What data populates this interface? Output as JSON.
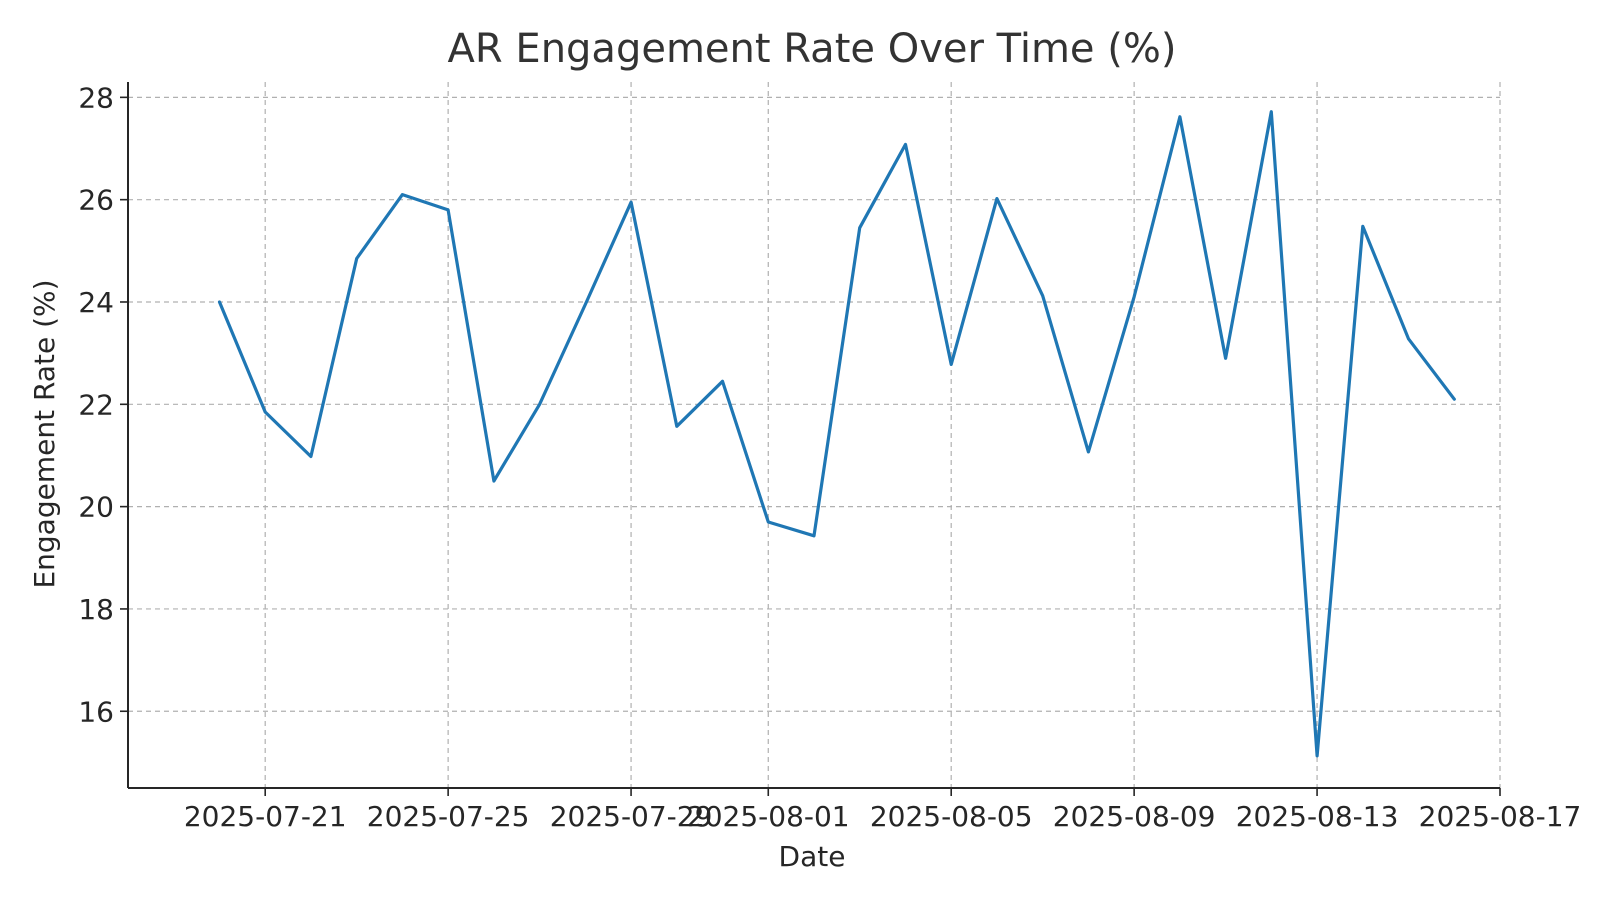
{
  "chart_data": {
    "type": "line",
    "title": "AR Engagement Rate Over Time (%)",
    "xlabel": "Date",
    "ylabel": "Engagement Rate (%)",
    "x_type": "date",
    "xlim": [
      "2025-07-18",
      "2025-08-17"
    ],
    "ylim": [
      14.5,
      28.3
    ],
    "grid": true,
    "grid_style": "dashed",
    "x_ticks": [
      "2025-07-21",
      "2025-07-25",
      "2025-07-29",
      "2025-08-01",
      "2025-08-05",
      "2025-08-09",
      "2025-08-13",
      "2025-08-17"
    ],
    "y_ticks": [
      16,
      18,
      20,
      22,
      24,
      26,
      28
    ],
    "series": [
      {
        "color": "#1f77b4",
        "x": [
          "2025-07-20",
          "2025-07-21",
          "2025-07-22",
          "2025-07-23",
          "2025-07-24",
          "2025-07-25",
          "2025-07-26",
          "2025-07-27",
          "2025-07-28",
          "2025-07-29",
          "2025-07-30",
          "2025-07-31",
          "2025-08-01",
          "2025-08-02",
          "2025-08-03",
          "2025-08-04",
          "2025-08-05",
          "2025-08-06",
          "2025-08-07",
          "2025-08-08",
          "2025-08-09",
          "2025-08-10",
          "2025-08-11",
          "2025-08-12",
          "2025-08-13",
          "2025-08-14",
          "2025-08-15",
          "2025-08-16",
          "2025-08-17"
        ],
        "values": [
          24.0,
          21.85,
          20.98,
          24.85,
          26.1,
          25.8,
          20.5,
          22.0,
          23.95,
          25.95,
          21.57,
          22.45,
          19.7,
          19.43,
          25.45,
          27.08,
          22.78,
          26.02,
          24.12,
          21.07,
          24.1,
          27.62,
          22.9,
          27.72,
          15.13,
          25.48,
          23.28,
          22.1,
          null
        ]
      }
    ]
  }
}
